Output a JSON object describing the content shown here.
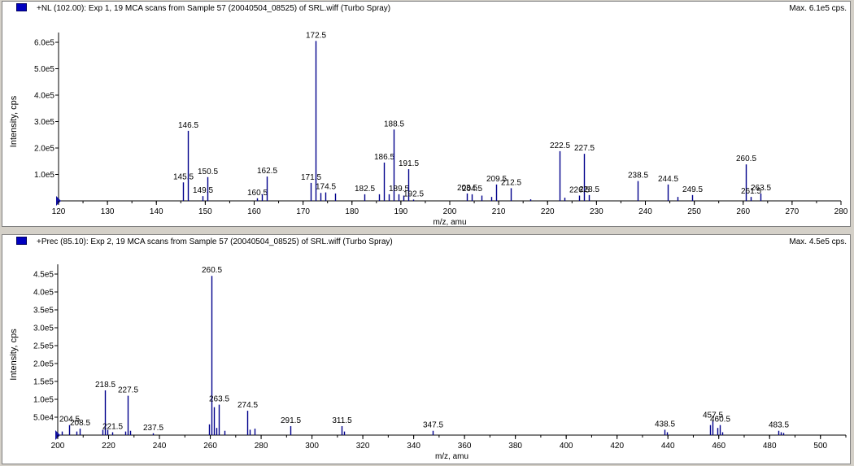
{
  "panels": [
    {
      "title": "+NL (102.00): Exp 1, 19 MCA scans from Sample 57 (20040504_08525) of SRL.wiff (Turbo Spray)",
      "max_label": "Max. 6.1e5 cps.",
      "xlabel": "m/z, amu",
      "ylabel": "Intensity, cps",
      "x_ticks": [
        "120",
        "130",
        "140",
        "150",
        "160",
        "170",
        "180",
        "190",
        "200",
        "210",
        "220",
        "230",
        "240",
        "250",
        "260",
        "270",
        "280"
      ],
      "y_ticks": [
        "1.0e5",
        "2.0e5",
        "3.0e5",
        "4.0e5",
        "5.0e5",
        "6.0e5"
      ]
    },
    {
      "title": "+Prec (85.10): Exp 2, 19 MCA scans from Sample 57 (20040504_08525) of SRL.wiff (Turbo Spray)",
      "max_label": "Max. 4.5e5 cps.",
      "xlabel": "m/z, amu",
      "ylabel": "Intensity, cps",
      "x_ticks": [
        "200",
        "220",
        "240",
        "260",
        "280",
        "300",
        "320",
        "340",
        "360",
        "380",
        "400",
        "420",
        "440",
        "460",
        "480",
        "500"
      ],
      "y_ticks": [
        "5.0e4",
        "1.0e5",
        "1.5e5",
        "2.0e5",
        "2.5e5",
        "3.0e5",
        "3.5e5",
        "4.0e5",
        "4.5e5"
      ]
    }
  ],
  "chart_data": [
    {
      "type": "bar",
      "title": "+NL (102.00): Exp 1, 19 MCA scans from Sample 57 (20040504_08525) of SRL.wiff (Turbo Spray)",
      "xlabel": "m/z, amu",
      "ylabel": "Intensity, cps",
      "xlim": [
        120,
        280
      ],
      "ylim": [
        0,
        620000
      ],
      "grid": false,
      "color": "#00008b",
      "peaks": [
        {
          "x": 145.5,
          "y": 70000,
          "label": "145.5"
        },
        {
          "x": 146.5,
          "y": 265000,
          "label": "146.5"
        },
        {
          "x": 149.5,
          "y": 18000,
          "label": "149.5"
        },
        {
          "x": 150.5,
          "y": 90000,
          "label": "150.5"
        },
        {
          "x": 160.5,
          "y": 10000,
          "label": "160.5"
        },
        {
          "x": 161.5,
          "y": 25000
        },
        {
          "x": 162.5,
          "y": 92000,
          "label": "162.5"
        },
        {
          "x": 171.5,
          "y": 68000,
          "label": "171.5"
        },
        {
          "x": 172.5,
          "y": 605000,
          "label": "172.5"
        },
        {
          "x": 173.5,
          "y": 30000
        },
        {
          "x": 174.5,
          "y": 32000,
          "label": "174.5"
        },
        {
          "x": 176.5,
          "y": 28000
        },
        {
          "x": 182.5,
          "y": 25000,
          "label": "182.5"
        },
        {
          "x": 185.5,
          "y": 25000
        },
        {
          "x": 186.5,
          "y": 145000,
          "label": "186.5"
        },
        {
          "x": 187.5,
          "y": 25000
        },
        {
          "x": 188.5,
          "y": 270000,
          "label": "188.5"
        },
        {
          "x": 189.5,
          "y": 25000,
          "label": "189.5"
        },
        {
          "x": 190.5,
          "y": 20000
        },
        {
          "x": 191.5,
          "y": 120000,
          "label": "191.5"
        },
        {
          "x": 192.5,
          "y": 5000,
          "label": "192.5"
        },
        {
          "x": 203.5,
          "y": 28000,
          "label": "203.5"
        },
        {
          "x": 204.5,
          "y": 25000,
          "label": "204.5"
        },
        {
          "x": 206.5,
          "y": 20000
        },
        {
          "x": 208.5,
          "y": 15000
        },
        {
          "x": 209.5,
          "y": 62000,
          "label": "209.5"
        },
        {
          "x": 212.5,
          "y": 48000,
          "label": "212.5"
        },
        {
          "x": 216.5,
          "y": 6000
        },
        {
          "x": 222.5,
          "y": 188000,
          "label": "222.5"
        },
        {
          "x": 223.5,
          "y": 12000
        },
        {
          "x": 226.5,
          "y": 20000,
          "label": "226.5"
        },
        {
          "x": 227.5,
          "y": 178000,
          "label": "227.5"
        },
        {
          "x": 228.5,
          "y": 22000,
          "label": "228.5"
        },
        {
          "x": 238.5,
          "y": 75000,
          "label": "238.5"
        },
        {
          "x": 244.5,
          "y": 62000,
          "label": "244.5"
        },
        {
          "x": 246.5,
          "y": 15000
        },
        {
          "x": 249.5,
          "y": 22000,
          "label": "249.5"
        },
        {
          "x": 260.5,
          "y": 138000,
          "label": "260.5"
        },
        {
          "x": 261.5,
          "y": 15000,
          "label": "261.5"
        },
        {
          "x": 263.5,
          "y": 28000,
          "label": "263.5"
        }
      ]
    },
    {
      "type": "bar",
      "title": "+Prec (85.10): Exp 2, 19 MCA scans from Sample 57 (20040504_08525) of SRL.wiff (Turbo Spray)",
      "xlabel": "m/z, amu",
      "ylabel": "Intensity, cps",
      "xlim": [
        200,
        510
      ],
      "ylim": [
        0,
        460000
      ],
      "grid": false,
      "color": "#00008b",
      "peaks": [
        {
          "x": 201.5,
          "y": 10000
        },
        {
          "x": 204.5,
          "y": 28000,
          "label": "204.5"
        },
        {
          "x": 207.5,
          "y": 10000
        },
        {
          "x": 208.5,
          "y": 18000,
          "label": "208.5"
        },
        {
          "x": 217.5,
          "y": 15000
        },
        {
          "x": 218.5,
          "y": 125000,
          "label": "218.5"
        },
        {
          "x": 219.5,
          "y": 15000
        },
        {
          "x": 221.5,
          "y": 8000,
          "label": "221.5"
        },
        {
          "x": 226.5,
          "y": 10000
        },
        {
          "x": 227.5,
          "y": 110000,
          "label": "227.5"
        },
        {
          "x": 228.5,
          "y": 12000
        },
        {
          "x": 237.5,
          "y": 5000,
          "label": "237.5"
        },
        {
          "x": 259.5,
          "y": 30000
        },
        {
          "x": 260.5,
          "y": 445000,
          "label": "260.5"
        },
        {
          "x": 261.5,
          "y": 78000
        },
        {
          "x": 262.5,
          "y": 20000
        },
        {
          "x": 263.5,
          "y": 85000,
          "label": "263.5"
        },
        {
          "x": 265.5,
          "y": 12000
        },
        {
          "x": 274.5,
          "y": 68000,
          "label": "274.5"
        },
        {
          "x": 275.5,
          "y": 15000
        },
        {
          "x": 277.5,
          "y": 18000
        },
        {
          "x": 291.5,
          "y": 25000,
          "label": "291.5"
        },
        {
          "x": 311.5,
          "y": 25000,
          "label": "311.5"
        },
        {
          "x": 312.5,
          "y": 10000
        },
        {
          "x": 347.5,
          "y": 12000,
          "label": "347.5"
        },
        {
          "x": 438.5,
          "y": 15000,
          "label": "438.5"
        },
        {
          "x": 439.5,
          "y": 8000
        },
        {
          "x": 456.5,
          "y": 28000
        },
        {
          "x": 457.5,
          "y": 40000,
          "label": "457.5"
        },
        {
          "x": 459.5,
          "y": 20000
        },
        {
          "x": 460.5,
          "y": 28000,
          "label": "460.5"
        },
        {
          "x": 461.5,
          "y": 8000
        },
        {
          "x": 483.5,
          "y": 12000,
          "label": "483.5"
        },
        {
          "x": 484.5,
          "y": 8000
        },
        {
          "x": 485.5,
          "y": 6000
        }
      ]
    }
  ]
}
